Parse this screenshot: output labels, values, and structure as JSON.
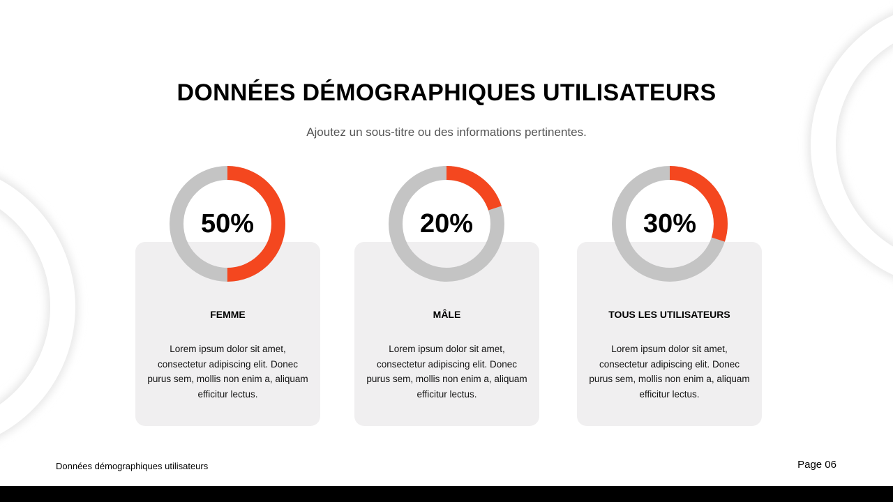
{
  "slide": {
    "title": "DONNÉES DÉMOGRAPHIQUES UTILISATEURS",
    "subtitle": "Ajoutez un sous-titre ou des informations pertinentes.",
    "footer_left": "Données démographiques utilisateurs",
    "footer_right": "Page 06"
  },
  "colors": {
    "accent": "#f4471f",
    "track": "#c4c4c4",
    "card": "#f0eff0"
  },
  "chart_data": [
    {
      "type": "pie",
      "variant": "donut",
      "value": 50,
      "unit": "%",
      "value_label": "50%",
      "category": "FEMME",
      "text": "Lorem ipsum dolor sit amet, consectetur adipiscing elit. Donec purus sem, mollis non enim a, aliquam efficitur lectus."
    },
    {
      "type": "pie",
      "variant": "donut",
      "value": 20,
      "unit": "%",
      "value_label": "20%",
      "category": "MÂLE",
      "text": "Lorem ipsum dolor sit amet, consectetur adipiscing elit. Donec purus sem, mollis non enim a, aliquam efficitur lectus."
    },
    {
      "type": "pie",
      "variant": "donut",
      "value": 30,
      "unit": "%",
      "value_label": "30%",
      "category": "TOUS LES UTILISATEURS",
      "text": "Lorem ipsum dolor sit amet, consectetur adipiscing elit. Donec purus sem, mollis non enim a, aliquam efficitur lectus."
    }
  ]
}
